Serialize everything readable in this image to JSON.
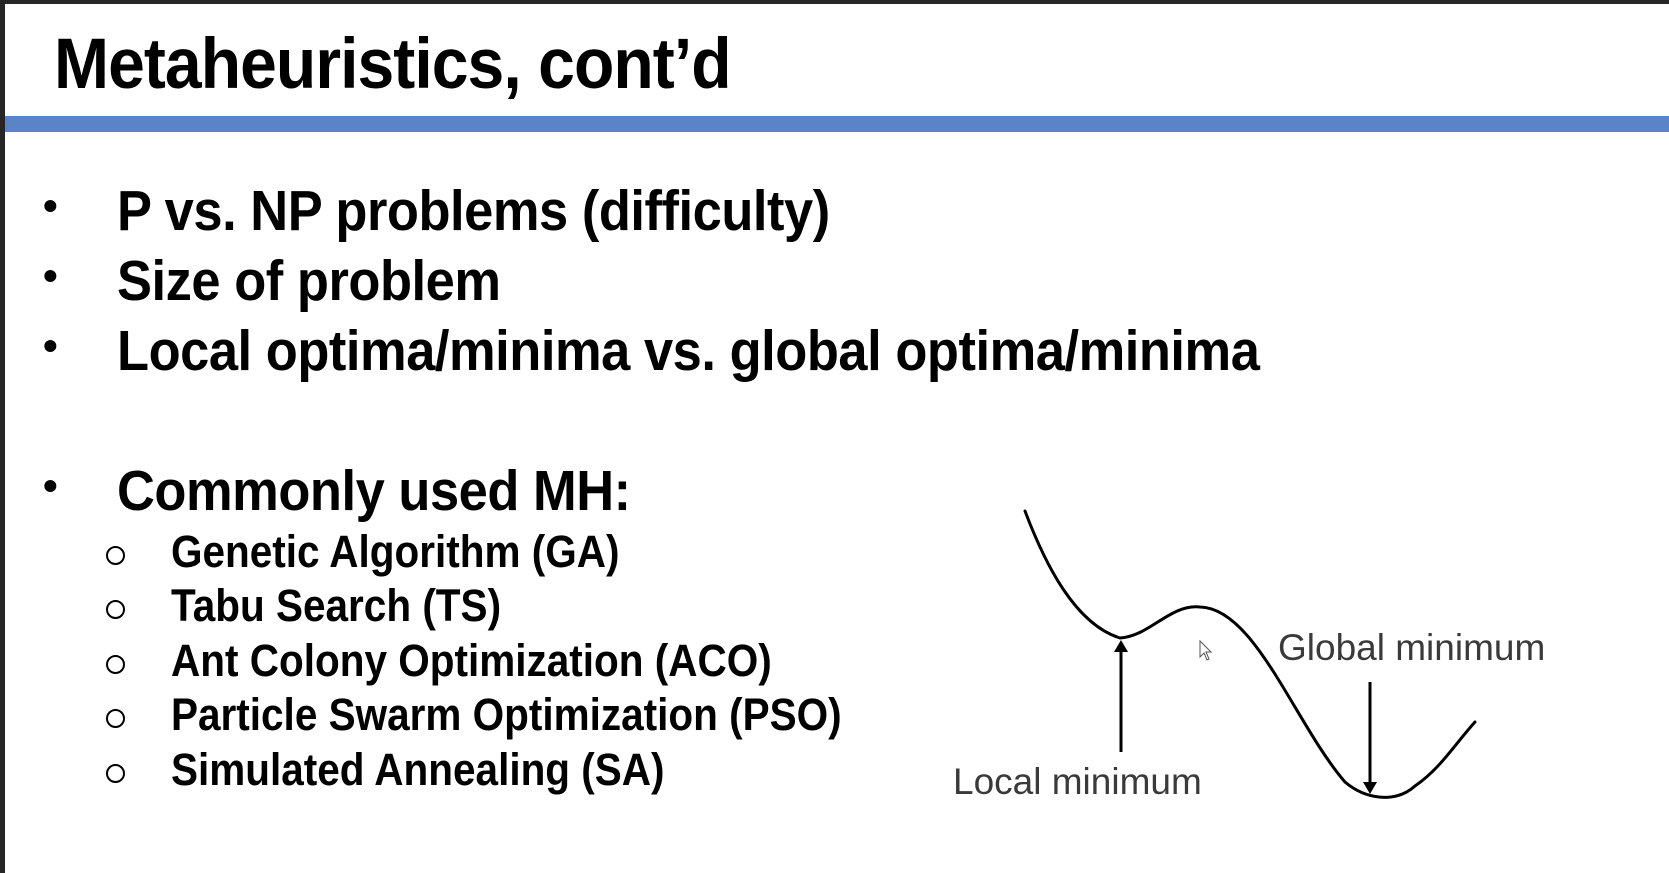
{
  "slide": {
    "title": "Metaheuristics, cont’d",
    "accent_color": "#5b84c8",
    "bullets": [
      {
        "marker": "•",
        "text": "P vs. NP problems (difficulty)"
      },
      {
        "marker": "•",
        "text": "Size of problem"
      },
      {
        "marker": "•",
        "text": "Local optima/minima vs. global optima/minima"
      },
      {
        "marker": "•",
        "text": "Commonly used MH:"
      }
    ],
    "sub_bullets": [
      {
        "marker": "hollow-circle",
        "text": "Genetic Algorithm (GA)"
      },
      {
        "marker": "hollow-circle",
        "text": "Tabu Search (TS)"
      },
      {
        "marker": "hollow-circle",
        "text": "Ant Colony Optimization (ACO)"
      },
      {
        "marker": "hollow-circle",
        "text": "Particle Swarm Optimization (PSO)"
      },
      {
        "marker": "hollow-circle",
        "text": "Simulated Annealing (SA)"
      }
    ],
    "figure": {
      "local_label": "Local minimum",
      "global_label": "Global minimum"
    }
  }
}
